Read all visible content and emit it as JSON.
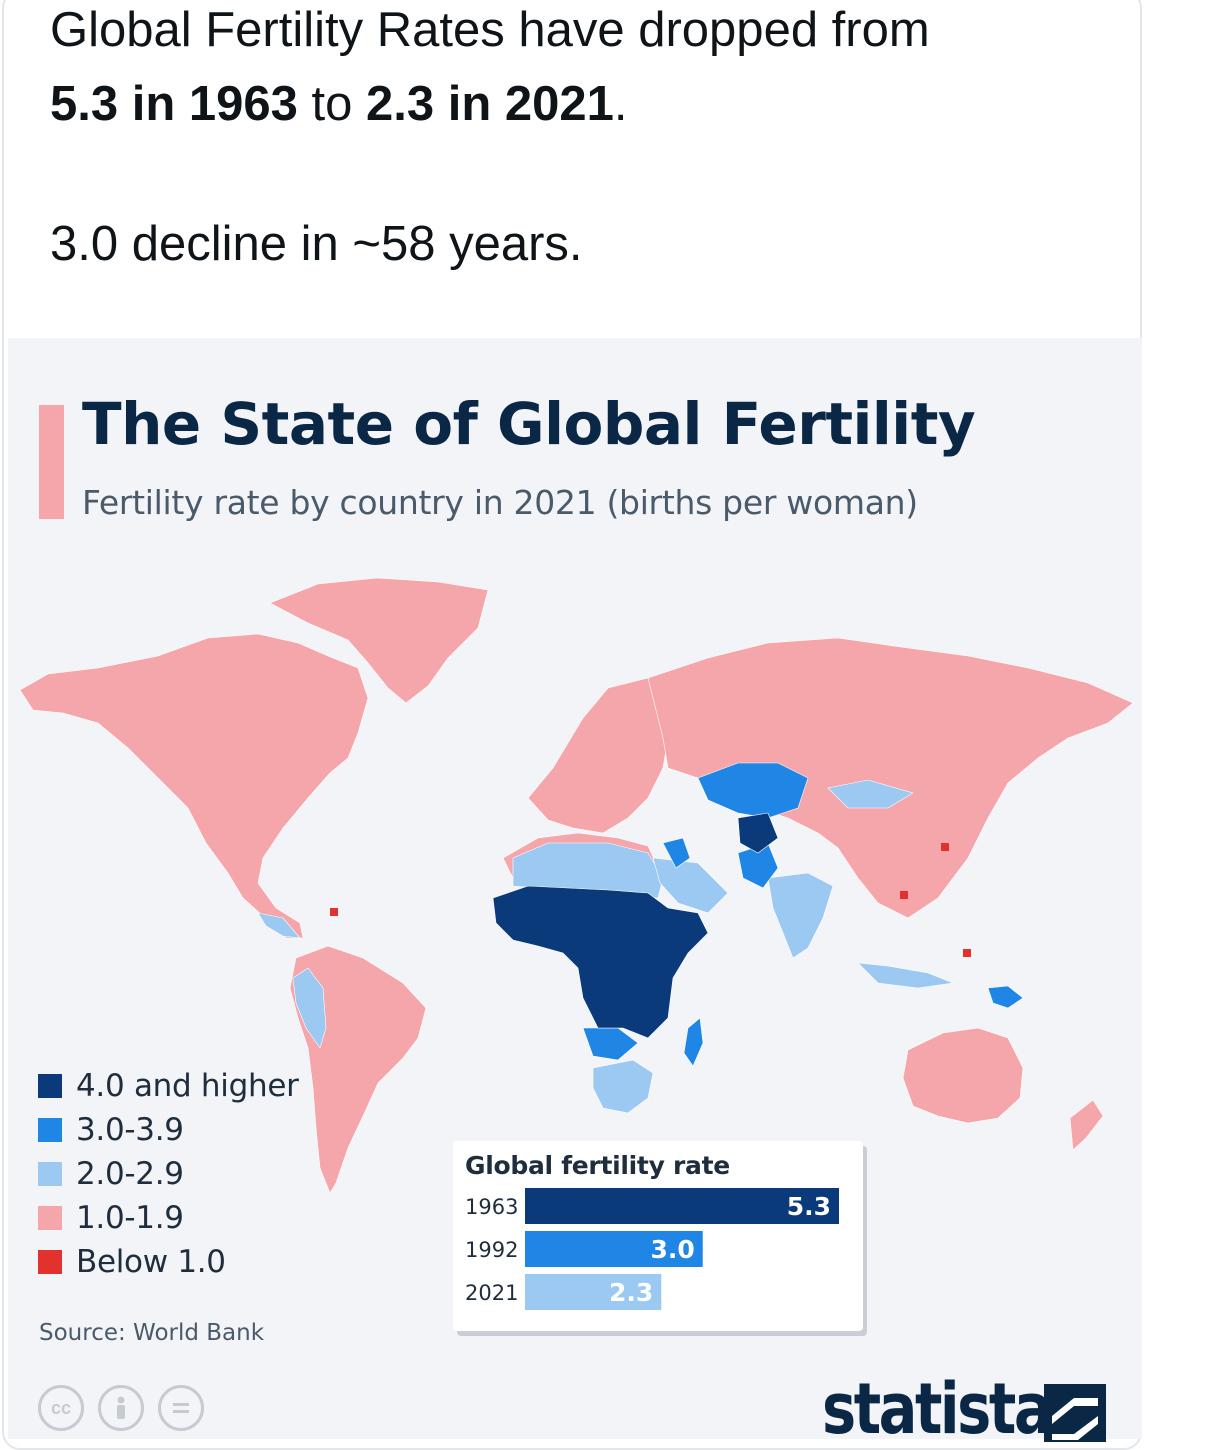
{
  "tweet": {
    "line1": "Global Fertility Rates have dropped from",
    "line2_bold_a": "5.3 in 1963",
    "line2_mid": " to ",
    "line2_bold_b": "2.3 in 2021",
    "line2_end": ".",
    "line3": "3.0 decline in ~58 years."
  },
  "infographic": {
    "title": "The State of Global Fertility",
    "subtitle": "Fertility rate by country in 2021 (births per woman)",
    "source": "Source: World Bank",
    "brand": "statista",
    "license_icons": [
      "cc-icon",
      "attribution-icon",
      "no-derivatives-icon"
    ],
    "accent_color": "#f4a6aa"
  },
  "legend": {
    "items": [
      {
        "label": "4.0 and higher",
        "color": "#0b3a7a"
      },
      {
        "label": "3.0-3.9",
        "color": "#1f86e6"
      },
      {
        "label": "2.0-2.9",
        "color": "#9cc9f2"
      },
      {
        "label": "1.0-1.9",
        "color": "#f4a6aa"
      },
      {
        "label": "Below 1.0",
        "color": "#e2322d"
      }
    ]
  },
  "chart_data": {
    "type": "bar",
    "title": "Global fertility rate",
    "categories": [
      "1963",
      "1992",
      "2021"
    ],
    "values": [
      5.3,
      3.0,
      2.3
    ],
    "colors": [
      "#0b3a7a",
      "#1f86e6",
      "#9cc9f2"
    ],
    "orientation": "horizontal",
    "xlim": [
      0,
      5.3
    ],
    "grid": false,
    "legend": "none"
  }
}
